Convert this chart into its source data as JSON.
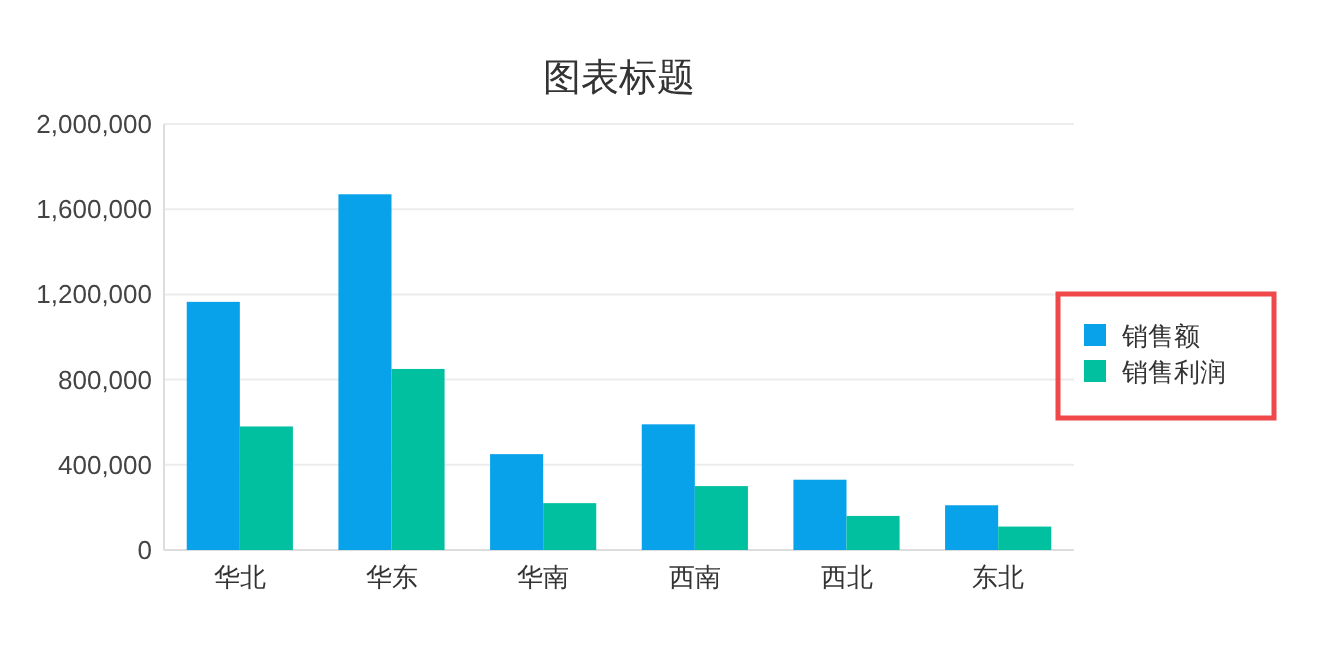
{
  "chart_data": {
    "type": "bar",
    "title": "图表标题",
    "categories": [
      "华北",
      "华东",
      "华南",
      "西南",
      "西北",
      "东北"
    ],
    "series": [
      {
        "name": "销售额",
        "color": "#07a2e9",
        "values": [
          1165000,
          1670000,
          450000,
          590000,
          330000,
          210000
        ]
      },
      {
        "name": "销售利润",
        "color": "#00c0a0",
        "values": [
          580000,
          850000,
          220000,
          300000,
          160000,
          110000
        ]
      }
    ],
    "ylim": [
      0,
      2000000
    ],
    "yticks": [
      {
        "value": 0,
        "label": "0"
      },
      {
        "value": 400000,
        "label": "400,000"
      },
      {
        "value": 800000,
        "label": "800,000"
      },
      {
        "value": 1200000,
        "label": "1,200,000"
      },
      {
        "value": 1600000,
        "label": "1,600,000"
      },
      {
        "value": 2000000,
        "label": "2,000,000"
      }
    ],
    "grid": "y",
    "legend": "right"
  }
}
